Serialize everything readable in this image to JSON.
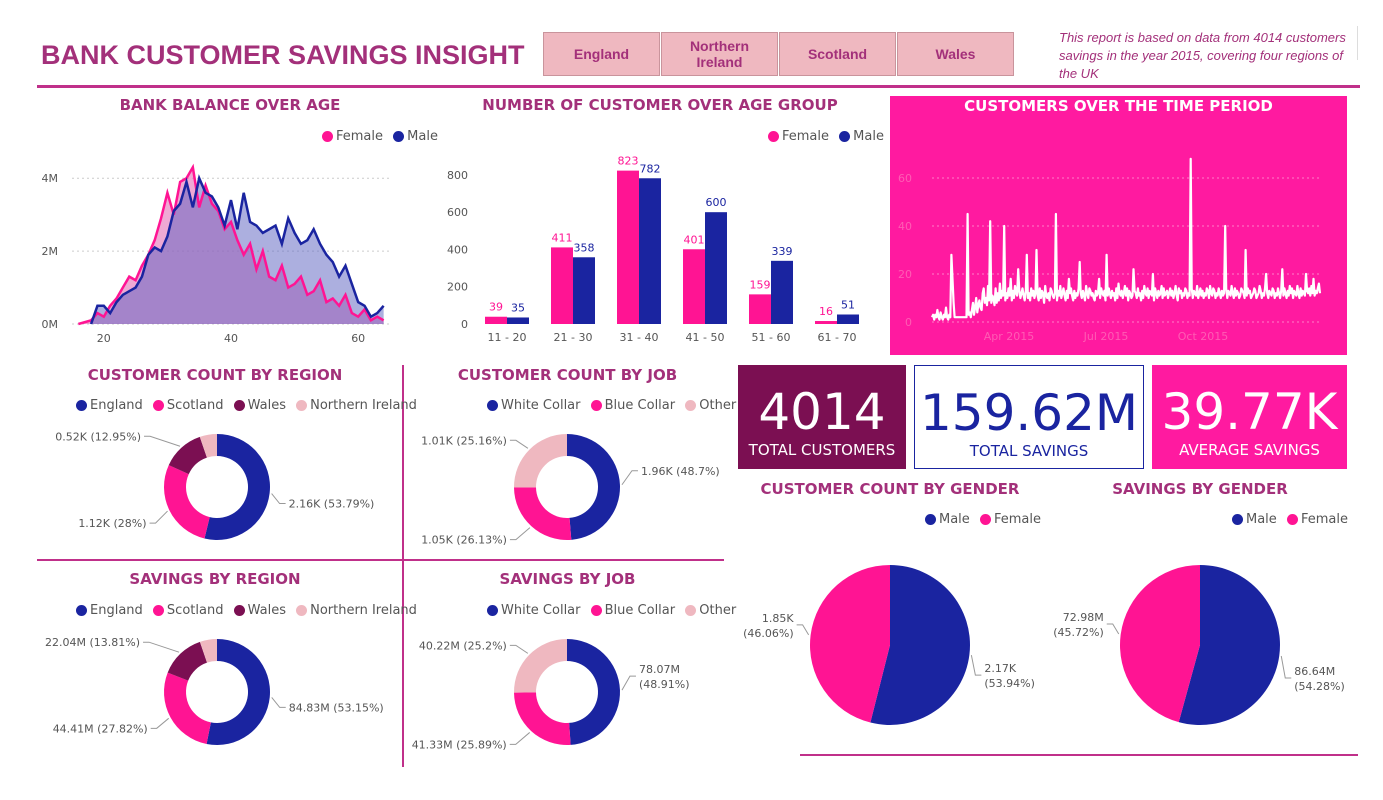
{
  "header": {
    "title": "BANK CUSTOMER SAVINGS INSIGHT",
    "note": "This report is based on data from 4014 customers savings in the year 2015, covering four regions of the UK",
    "tabs": [
      "England",
      "Northern Ireland",
      "Scotland",
      "Wales"
    ]
  },
  "colors": {
    "female": "#ff1493",
    "male": "#1a24a0",
    "wales": "#7b0f52",
    "ni": "#efb8c0",
    "accent": "#a3307a",
    "panel": "#ff1aa0"
  },
  "kpis": [
    {
      "value": "4014",
      "label": "TOTAL CUSTOMERS"
    },
    {
      "value": "159.62M",
      "label": "TOTAL SAVINGS"
    },
    {
      "value": "39.77K",
      "label": "AVERAGE SAVINGS"
    }
  ],
  "legends": {
    "gender": [
      "Female",
      "Male"
    ],
    "gender2": [
      "Male",
      "Female"
    ],
    "region": [
      "England",
      "Scotland",
      "Wales",
      "Northern Ireland"
    ],
    "job": [
      "White Collar",
      "Blue Collar",
      "Other"
    ]
  },
  "chart_data": [
    {
      "id": "balance_age",
      "type": "area",
      "title": "BANK BALANCE OVER AGE",
      "x_ticks": [
        "20",
        "40",
        "60"
      ],
      "y_ticks": [
        "0M",
        "2M",
        "4M"
      ],
      "xlim": [
        15,
        65
      ],
      "ylim": [
        0,
        4.5
      ],
      "series": [
        {
          "name": "Female",
          "x": [
            16,
            18,
            19,
            20,
            21,
            22,
            23,
            24,
            25,
            26,
            27,
            28,
            29,
            30,
            31,
            32,
            33,
            34,
            35,
            36,
            37,
            38,
            39,
            40,
            41,
            42,
            43,
            44,
            45,
            46,
            47,
            48,
            49,
            50,
            51,
            52,
            53,
            54,
            55,
            56,
            57,
            58,
            59,
            60,
            61,
            62,
            63,
            64
          ],
          "values": [
            0.0,
            0.1,
            0.3,
            0.2,
            0.5,
            0.7,
            1.0,
            1.3,
            1.2,
            1.6,
            1.9,
            2.3,
            2.9,
            3.6,
            3.0,
            3.9,
            4.0,
            4.3,
            3.2,
            3.8,
            3.3,
            3.1,
            2.6,
            2.8,
            2.3,
            1.9,
            2.2,
            1.5,
            2.0,
            1.3,
            1.2,
            1.6,
            1.0,
            1.1,
            1.3,
            0.8,
            0.9,
            1.2,
            0.6,
            0.7,
            0.5,
            0.8,
            0.3,
            0.2,
            0.4,
            0.1,
            0.2,
            0.1
          ]
        },
        {
          "name": "Male",
          "x": [
            18,
            19,
            20,
            21,
            22,
            23,
            24,
            25,
            26,
            27,
            28,
            29,
            30,
            31,
            32,
            33,
            34,
            35,
            36,
            37,
            38,
            39,
            40,
            41,
            42,
            43,
            44,
            45,
            46,
            47,
            48,
            49,
            50,
            51,
            52,
            53,
            54,
            55,
            56,
            57,
            58,
            59,
            60,
            61,
            62,
            63,
            64
          ],
          "values": [
            0.0,
            0.5,
            0.5,
            0.3,
            0.6,
            0.8,
            0.9,
            1.0,
            1.3,
            1.9,
            2.1,
            2.0,
            2.4,
            3.1,
            3.3,
            3.9,
            3.2,
            4.0,
            3.6,
            3.5,
            3.2,
            2.7,
            3.4,
            2.6,
            3.6,
            2.8,
            2.7,
            2.5,
            2.6,
            2.7,
            2.2,
            2.9,
            2.5,
            2.2,
            2.3,
            2.6,
            2.2,
            1.9,
            1.7,
            1.3,
            1.6,
            1.1,
            0.6,
            0.5,
            0.2,
            0.3,
            0.5
          ]
        }
      ]
    },
    {
      "id": "customer_age_group",
      "type": "bar",
      "title": "NUMBER OF CUSTOMER OVER AGE GROUP",
      "categories": [
        "11 - 20",
        "21 - 30",
        "31 - 40",
        "41 - 50",
        "51 - 60",
        "61 - 70"
      ],
      "y_ticks": [
        "0",
        "200",
        "400",
        "600",
        "800"
      ],
      "ylim": [
        0,
        880
      ],
      "series": [
        {
          "name": "Female",
          "values": [
            39,
            411,
            823,
            401,
            159,
            16
          ]
        },
        {
          "name": "Male",
          "values": [
            35,
            358,
            782,
            600,
            339,
            51
          ]
        }
      ]
    },
    {
      "id": "customers_time",
      "type": "line",
      "title": "CUSTOMERS OVER THE TIME PERIOD",
      "x_ticks": [
        "Apr 2015",
        "Jul 2015",
        "Oct 2015"
      ],
      "y_ticks": [
        "0",
        "20",
        "40",
        "60"
      ],
      "ylim": [
        0,
        75
      ],
      "values": [
        2,
        3,
        1,
        3,
        2,
        5,
        2,
        1,
        4,
        2,
        1,
        3,
        2,
        6,
        2,
        1,
        3,
        2,
        28,
        18,
        8,
        2,
        2,
        2,
        2,
        2,
        2,
        2,
        2,
        2,
        2,
        2,
        2,
        45,
        3,
        4,
        2,
        5,
        8,
        3,
        6,
        10,
        4,
        7,
        9,
        6,
        5,
        12,
        14,
        8,
        10,
        7,
        15,
        9,
        42,
        8,
        11,
        10,
        7,
        14,
        8,
        12,
        9,
        16,
        10,
        13,
        11,
        40,
        9,
        12,
        10,
        14,
        11,
        18,
        9,
        13,
        10,
        15,
        12,
        11,
        22,
        13,
        10,
        12,
        14,
        11,
        9,
        13,
        28,
        10,
        12,
        9,
        14,
        11,
        13,
        10,
        12,
        30,
        11,
        9,
        14,
        10,
        13,
        12,
        8,
        15,
        11,
        10,
        12,
        9,
        14,
        13,
        11,
        10,
        12,
        45,
        9,
        13,
        11,
        15,
        10,
        12,
        14,
        11,
        9,
        13,
        10,
        18,
        12,
        14,
        11,
        9,
        13,
        10,
        12,
        11,
        14,
        25,
        12,
        10,
        13,
        11,
        9,
        15,
        12,
        10,
        14,
        13,
        11,
        12,
        10,
        9,
        13,
        11,
        12,
        18,
        10,
        14,
        12,
        11,
        13,
        9,
        28,
        11,
        14,
        12,
        10,
        13,
        11,
        12,
        9,
        14,
        10,
        16,
        12,
        11,
        13,
        10,
        12,
        15,
        11,
        14,
        9,
        13,
        12,
        10,
        11,
        22,
        13,
        12,
        10,
        14,
        11,
        12,
        9,
        13,
        10,
        15,
        12,
        11,
        14,
        10,
        13,
        12,
        11,
        20,
        9,
        14,
        12,
        10,
        13,
        11,
        12,
        15,
        10,
        14,
        11,
        12,
        13,
        10,
        12,
        14,
        11,
        13,
        10,
        12,
        15,
        11,
        9,
        14,
        12,
        13,
        10,
        12,
        11,
        14,
        13,
        10,
        12,
        11,
        68,
        14,
        10,
        13,
        12,
        11,
        15,
        10,
        12,
        14,
        11,
        13,
        10,
        12,
        11,
        14,
        13,
        10,
        15,
        12,
        11,
        14,
        13,
        10,
        12,
        11,
        14,
        12,
        10,
        13,
        11,
        12,
        40,
        14,
        10,
        13,
        12,
        11,
        15,
        12,
        10,
        14,
        11,
        13,
        12,
        10,
        11,
        14,
        13,
        12,
        10,
        30,
        11,
        14,
        12,
        13,
        10,
        11,
        12,
        14,
        13,
        10,
        11,
        12,
        15,
        13,
        10,
        12,
        11,
        14,
        20,
        12,
        10,
        13,
        12,
        11,
        14,
        13,
        10,
        12,
        11,
        14,
        12,
        10,
        13,
        22,
        11,
        14,
        12,
        10,
        13,
        11,
        15,
        12,
        14,
        10,
        13,
        12,
        11,
        15,
        12,
        10,
        14,
        11,
        13,
        12,
        11,
        20,
        13,
        12,
        14,
        11,
        15,
        12,
        18,
        11,
        13,
        12,
        14,
        16,
        12
      ]
    },
    {
      "id": "count_region",
      "type": "pie",
      "title": "CUSTOMER COUNT BY REGION",
      "categories": [
        "England",
        "Scotland",
        "Wales",
        "Northern Ireland"
      ],
      "values": [
        53.79,
        28,
        12.95,
        5.26
      ],
      "labels": [
        "2.16K (53.79%)",
        "1.12K (28%)",
        "0.52K (12.95%)",
        ""
      ]
    },
    {
      "id": "count_job",
      "type": "pie",
      "title": "CUSTOMER COUNT BY JOB",
      "categories": [
        "White Collar",
        "Blue Collar",
        "Other"
      ],
      "values": [
        48.7,
        26.13,
        25.16
      ],
      "labels": [
        "1.96K (48.7%)",
        "1.05K (26.13%)",
        "1.01K (25.16%)"
      ]
    },
    {
      "id": "savings_region",
      "type": "pie",
      "title": "SAVINGS BY REGION",
      "categories": [
        "England",
        "Scotland",
        "Wales",
        "Northern Ireland"
      ],
      "values": [
        53.15,
        27.82,
        13.81,
        5.22
      ],
      "labels": [
        "84.83M (53.15%)",
        "44.41M (27.82%)",
        "22.04M (13.81%)",
        ""
      ]
    },
    {
      "id": "savings_job",
      "type": "pie",
      "title": "SAVINGS BY JOB",
      "categories": [
        "White Collar",
        "Blue Collar",
        "Other"
      ],
      "values": [
        48.91,
        25.89,
        25.2
      ],
      "labels": [
        "78.07M (48.91%)",
        "41.33M (25.89%)",
        "40.22M (25.2%)"
      ]
    },
    {
      "id": "count_gender",
      "type": "pie",
      "title": "CUSTOMER COUNT BY GENDER",
      "categories": [
        "Male",
        "Female"
      ],
      "values": [
        53.94,
        46.06
      ],
      "labels": [
        "2.17K (53.94%)",
        "1.85K (46.06%)"
      ]
    },
    {
      "id": "savings_gender",
      "type": "pie",
      "title": "SAVINGS BY GENDER",
      "categories": [
        "Male",
        "Female"
      ],
      "values": [
        54.28,
        45.72
      ],
      "labels": [
        "86.64M (54.28%)",
        "72.98M (45.72%)"
      ]
    }
  ]
}
